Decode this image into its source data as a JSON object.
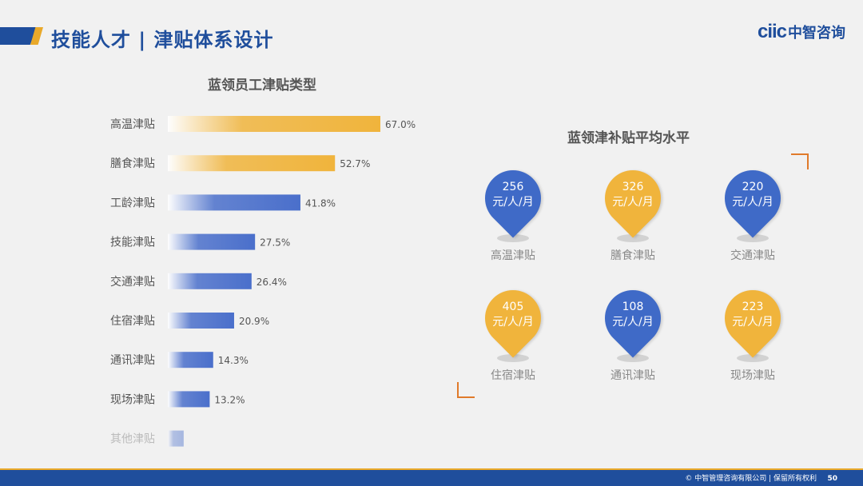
{
  "header": {
    "title": "技能人才 | 津贴体系设计",
    "brand_mark": "ciic",
    "brand_name": "中智咨询"
  },
  "chart_data": {
    "type": "bar",
    "orientation": "horizontal",
    "title": "蓝领员工津贴类型",
    "categories": [
      "高温津贴",
      "膳食津贴",
      "工龄津贴",
      "技能津贴",
      "交通津贴",
      "住宿津贴",
      "通讯津贴",
      "现场津贴",
      "其他津贴"
    ],
    "values": [
      67.0,
      52.7,
      41.8,
      27.5,
      26.4,
      20.9,
      14.3,
      13.2,
      5.0
    ],
    "value_labels": [
      "67.0%",
      "52.7%",
      "41.8%",
      "27.5%",
      "26.4%",
      "20.9%",
      "14.3%",
      "13.2%",
      ""
    ],
    "colors": [
      "#f0b43c",
      "#f0b43c",
      "#4a6fcb",
      "#4a6fcb",
      "#4a6fcb",
      "#4a6fcb",
      "#4a6fcb",
      "#4a6fcb",
      "#4a6fcb"
    ],
    "xlim": [
      0,
      67
    ],
    "grid": false
  },
  "right_panel": {
    "title": "蓝领津补贴平均水平",
    "pins": [
      {
        "value": "256",
        "unit": "元/人/月",
        "label": "高温津贴",
        "color": "#3f6ac7"
      },
      {
        "value": "326",
        "unit": "元/人/月",
        "label": "膳食津贴",
        "color": "#f0b43c"
      },
      {
        "value": "220",
        "unit": "元/人/月",
        "label": "交通津贴",
        "color": "#3f6ac7"
      },
      {
        "value": "405",
        "unit": "元/人/月",
        "label": "住宿津贴",
        "color": "#f0b43c"
      },
      {
        "value": "108",
        "unit": "元/人/月",
        "label": "通讯津贴",
        "color": "#3f6ac7"
      },
      {
        "value": "223",
        "unit": "元/人/月",
        "label": "现场津贴",
        "color": "#f0b43c"
      }
    ]
  },
  "footer": {
    "copyright": "© 中智管理咨询有限公司 | 保留所有权利",
    "page": "50"
  }
}
